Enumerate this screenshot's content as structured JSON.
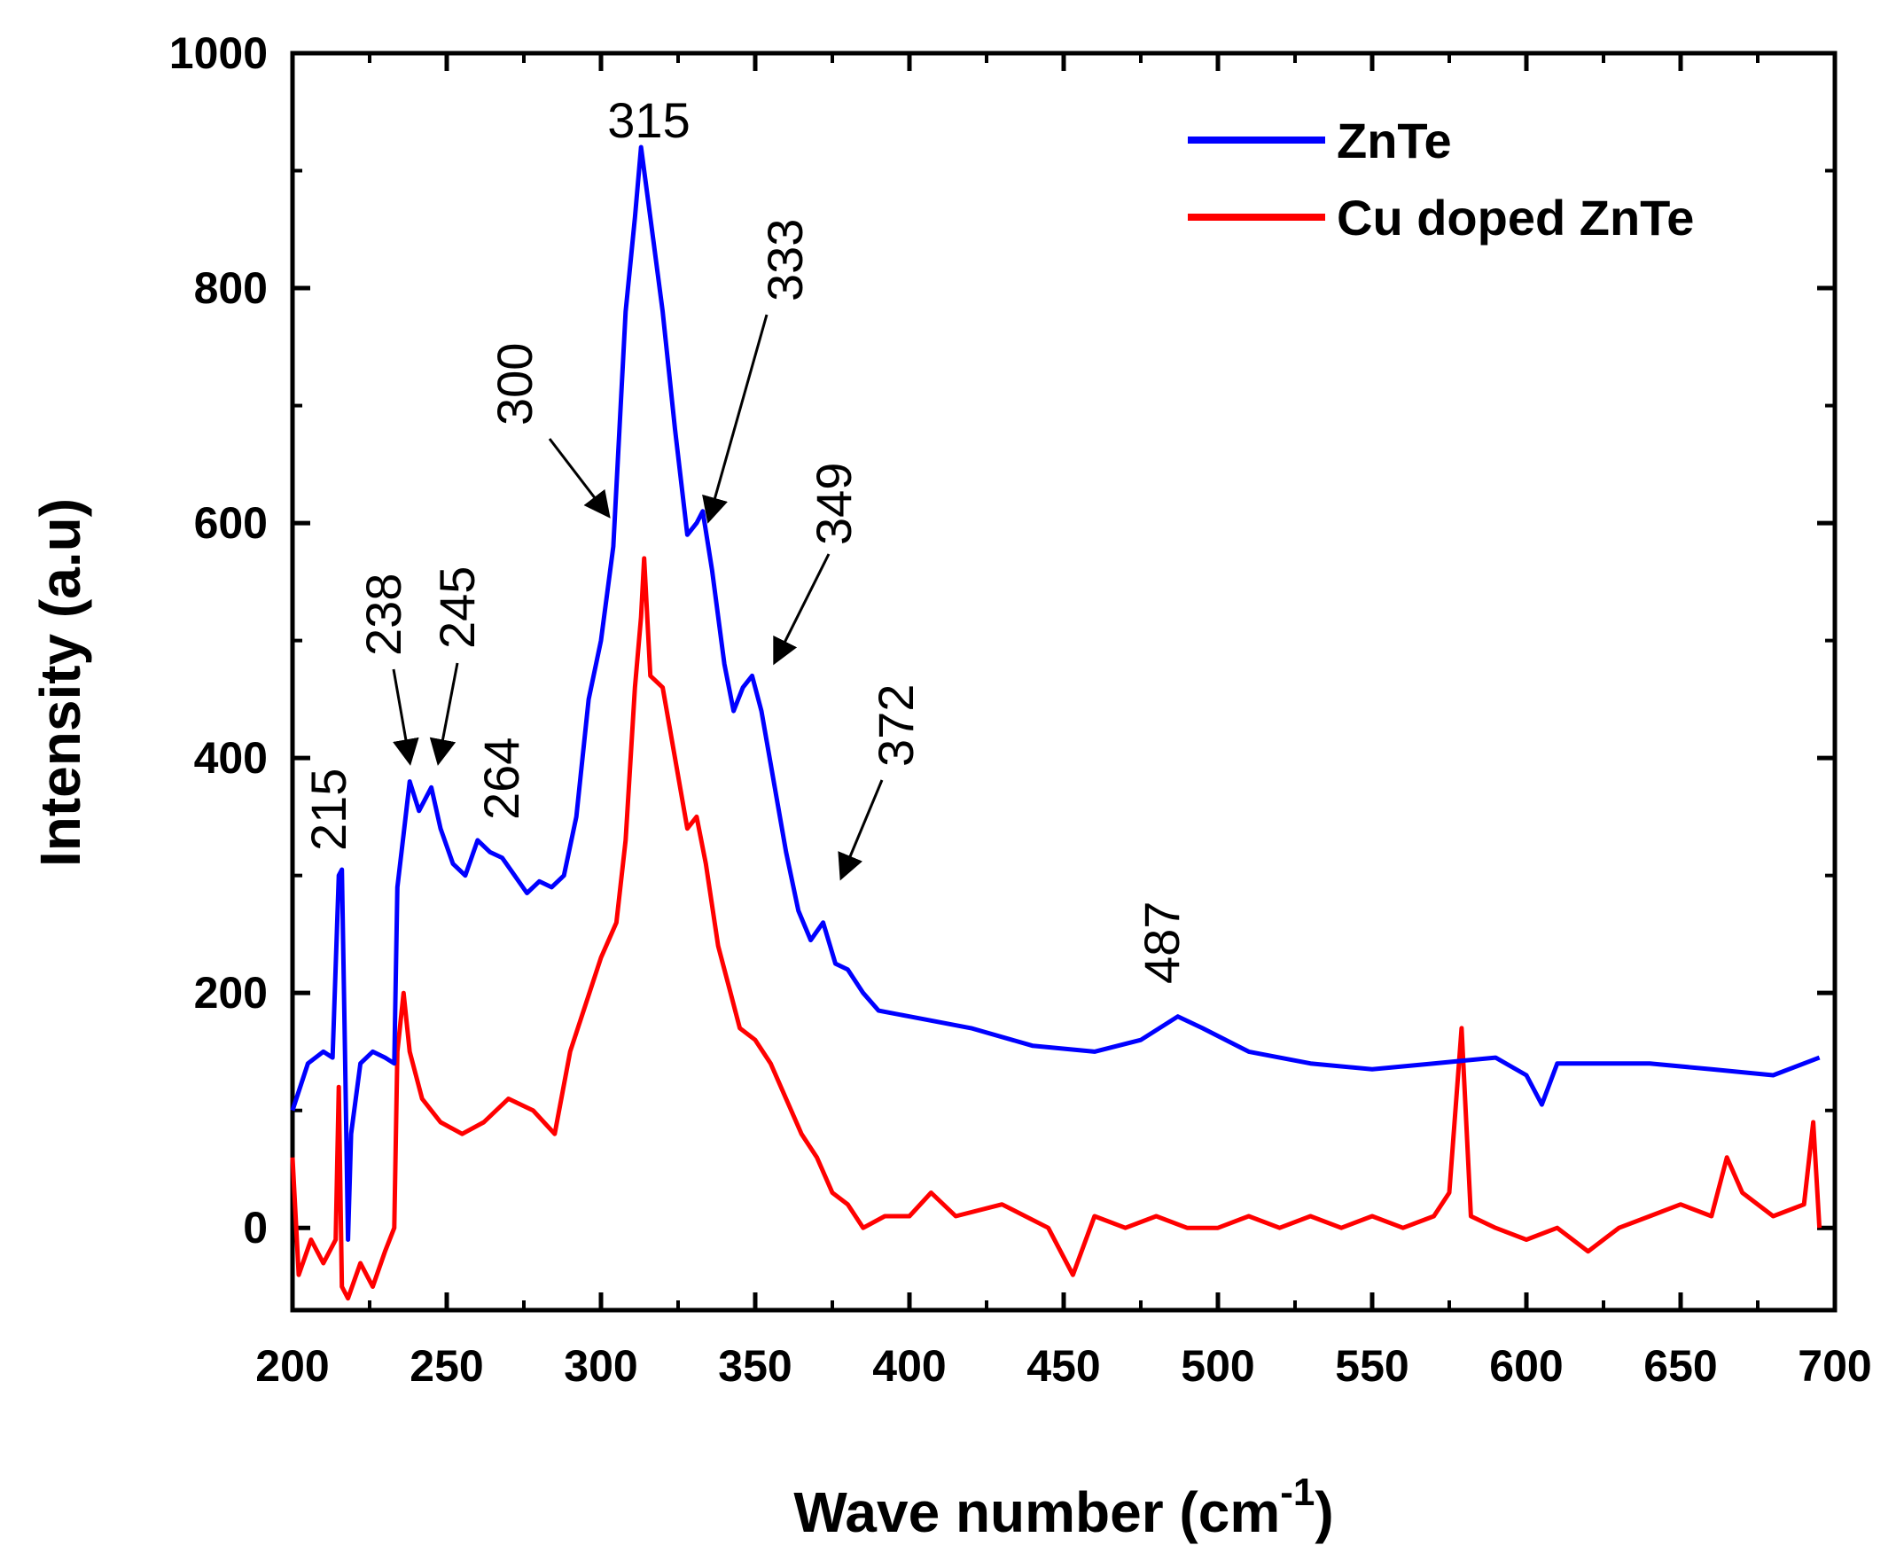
{
  "chart_data": {
    "type": "line",
    "title": "",
    "xlabel": "Wave number (cm",
    "xlabel_sup": "-1",
    "xlabel_close": ")",
    "ylabel": "Intensity (a.u)",
    "xlim": [
      200,
      700
    ],
    "ylim": [
      -70,
      1000
    ],
    "x_ticks": [
      200,
      250,
      300,
      350,
      400,
      450,
      500,
      550,
      600,
      650,
      700
    ],
    "y_ticks": [
      0,
      200,
      400,
      600,
      800,
      1000
    ],
    "legend_position": "top-right",
    "series": [
      {
        "name": "ZnTe",
        "color": "#0000ff",
        "x": [
          200,
          205,
          210,
          213,
          215,
          216,
          217,
          218,
          219,
          222,
          226,
          230,
          233,
          234,
          236,
          238,
          241,
          245,
          248,
          252,
          256,
          260,
          264,
          268,
          272,
          276,
          280,
          284,
          288,
          292,
          296,
          300,
          304,
          308,
          311,
          313,
          315,
          317,
          320,
          324,
          328,
          331,
          333,
          336,
          340,
          343,
          346,
          349,
          352,
          356,
          360,
          364,
          368,
          372,
          376,
          380,
          385,
          390,
          400,
          420,
          440,
          460,
          475,
          487,
          495,
          510,
          530,
          550,
          570,
          590,
          600,
          605,
          610,
          620,
          640,
          660,
          680,
          695
        ],
        "values": [
          100,
          140,
          150,
          145,
          300,
          305,
          150,
          -10,
          80,
          140,
          150,
          145,
          140,
          290,
          335,
          380,
          355,
          375,
          340,
          310,
          300,
          330,
          320,
          315,
          300,
          285,
          295,
          290,
          300,
          350,
          450,
          500,
          580,
          780,
          860,
          920,
          880,
          840,
          780,
          680,
          590,
          600,
          610,
          560,
          480,
          440,
          460,
          470,
          440,
          380,
          320,
          270,
          245,
          260,
          225,
          220,
          200,
          185,
          180,
          170,
          155,
          150,
          160,
          180,
          170,
          150,
          140,
          135,
          140,
          145,
          130,
          105,
          140,
          140,
          140,
          135,
          130,
          145
        ]
      },
      {
        "name": "Cu doped ZnTe",
        "color": "#ff0000",
        "x": [
          200,
          202,
          206,
          210,
          214,
          215,
          216,
          218,
          222,
          226,
          230,
          233,
          234,
          236,
          238,
          242,
          248,
          255,
          262,
          270,
          278,
          285,
          290,
          295,
          300,
          305,
          308,
          311,
          313,
          314,
          316,
          320,
          324,
          328,
          331,
          334,
          338,
          342,
          345,
          350,
          355,
          360,
          365,
          370,
          375,
          380,
          385,
          392,
          400,
          407,
          415,
          430,
          445,
          453,
          460,
          470,
          480,
          490,
          500,
          510,
          520,
          530,
          540,
          550,
          560,
          570,
          575,
          579,
          582,
          590,
          600,
          610,
          620,
          630,
          640,
          650,
          660,
          665,
          670,
          680,
          690,
          693,
          695
        ],
        "values": [
          60,
          -40,
          -10,
          -30,
          -10,
          120,
          -50,
          -60,
          -30,
          -50,
          -20,
          0,
          150,
          200,
          150,
          110,
          90,
          80,
          90,
          110,
          100,
          80,
          150,
          190,
          230,
          260,
          330,
          460,
          520,
          570,
          470,
          460,
          400,
          340,
          350,
          310,
          240,
          200,
          170,
          160,
          140,
          110,
          80,
          60,
          30,
          20,
          0,
          10,
          10,
          30,
          10,
          20,
          0,
          -40,
          10,
          0,
          10,
          0,
          0,
          10,
          0,
          10,
          0,
          10,
          0,
          10,
          30,
          170,
          10,
          0,
          -10,
          0,
          -20,
          0,
          10,
          20,
          10,
          60,
          30,
          10,
          20,
          90,
          0
        ]
      }
    ],
    "annotations": [
      {
        "label": "215",
        "rotated": true
      },
      {
        "label": "238",
        "rotated": true,
        "arrow": true
      },
      {
        "label": "245",
        "rotated": true,
        "arrow": true
      },
      {
        "label": "264",
        "rotated": true
      },
      {
        "label": "300",
        "rotated": true,
        "arrow": true
      },
      {
        "label": "315",
        "rotated": false
      },
      {
        "label": "333",
        "rotated": true,
        "arrow": true
      },
      {
        "label": "349",
        "rotated": true,
        "arrow": true
      },
      {
        "label": "372",
        "rotated": true,
        "arrow": true
      },
      {
        "label": "487",
        "rotated": true
      }
    ]
  }
}
